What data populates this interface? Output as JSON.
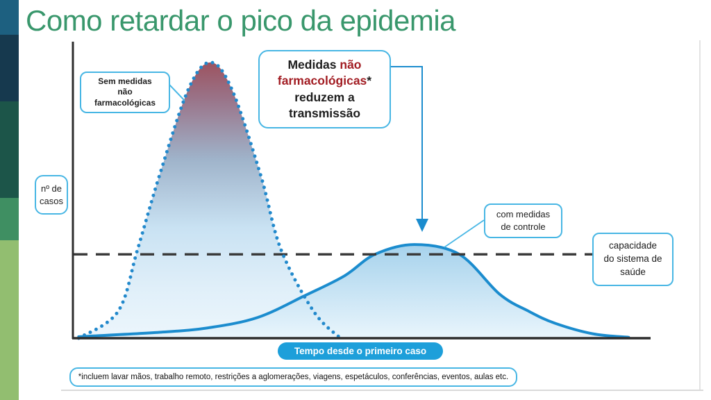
{
  "slide": {
    "title": "Como retardar o pico da epidemia",
    "stripe_colors": [
      "#1D6080",
      "#16394E",
      "#1C5549",
      "#3F8F62",
      "#92BE70"
    ]
  },
  "palette": {
    "title_green": "#39976C",
    "accent_blue": "#1B8CCE",
    "pill_blue": "#1D9FDA",
    "box_border_blue": "#47B6E4",
    "red_text": "#A21D23",
    "dashed_line": "#3A3A3A"
  },
  "chart_data": {
    "type": "area",
    "title": "",
    "xlabel": "Tempo desde o primeiro caso",
    "ylabel": "nº de casos",
    "axis_numeric_labels": false,
    "x_units": "percent of x-axis length",
    "y_units": "percent of y-axis height",
    "capacity_level": 28.3,
    "legend_position": "inline-callouts",
    "grid": false,
    "series": [
      {
        "name": "Sem medidas não farmacológicas",
        "style": "dotted",
        "color": "#2289CC",
        "fill": "maroon-to-lightblue vertical gradient",
        "points": [
          [
            1,
            0
          ],
          [
            7.8,
            9
          ],
          [
            11.2,
            30
          ],
          [
            15,
            55
          ],
          [
            20,
            84
          ],
          [
            23.8,
            93
          ],
          [
            27.5,
            84
          ],
          [
            32.5,
            55
          ],
          [
            36,
            30
          ],
          [
            41.7,
            9
          ],
          [
            46.3,
            0
          ]
        ]
      },
      {
        "name": "com medidas de controle",
        "style": "solid",
        "color": "#1B8CCE",
        "fill": "lightblue vertical gradient",
        "points": [
          [
            1,
            0.5
          ],
          [
            15,
            2
          ],
          [
            23.4,
            3.5
          ],
          [
            32,
            7
          ],
          [
            40.3,
            14.5
          ],
          [
            47,
            21
          ],
          [
            52.3,
            28.3
          ],
          [
            59.1,
            31.6
          ],
          [
            66.9,
            28.3
          ],
          [
            73.9,
            14.8
          ],
          [
            79,
            9
          ],
          [
            83.5,
            5
          ],
          [
            90,
            1.5
          ],
          [
            96.2,
            0.3
          ]
        ]
      }
    ],
    "labels": {
      "no_measures": "Sem medidas\nnão\nfarmacológicas",
      "with_measures": "com medidas\nde controle",
      "capacity": "capacidade\ndo sistema de\nsaúde",
      "y_axis": "nº de\ncasos",
      "x_axis": "Tempo desde o primeiro caso",
      "footnote": "*incluem lavar mãos, trabalho remoto, restrições a aglomerações, viagens, espetáculos, conferências, eventos, aulas etc.",
      "callout": {
        "l1a": "Medidas ",
        "l1b": "não",
        "l2a": "farmacológicas",
        "l2b": "*",
        "l3": "reduzem a",
        "l4": "transmissão"
      }
    }
  }
}
